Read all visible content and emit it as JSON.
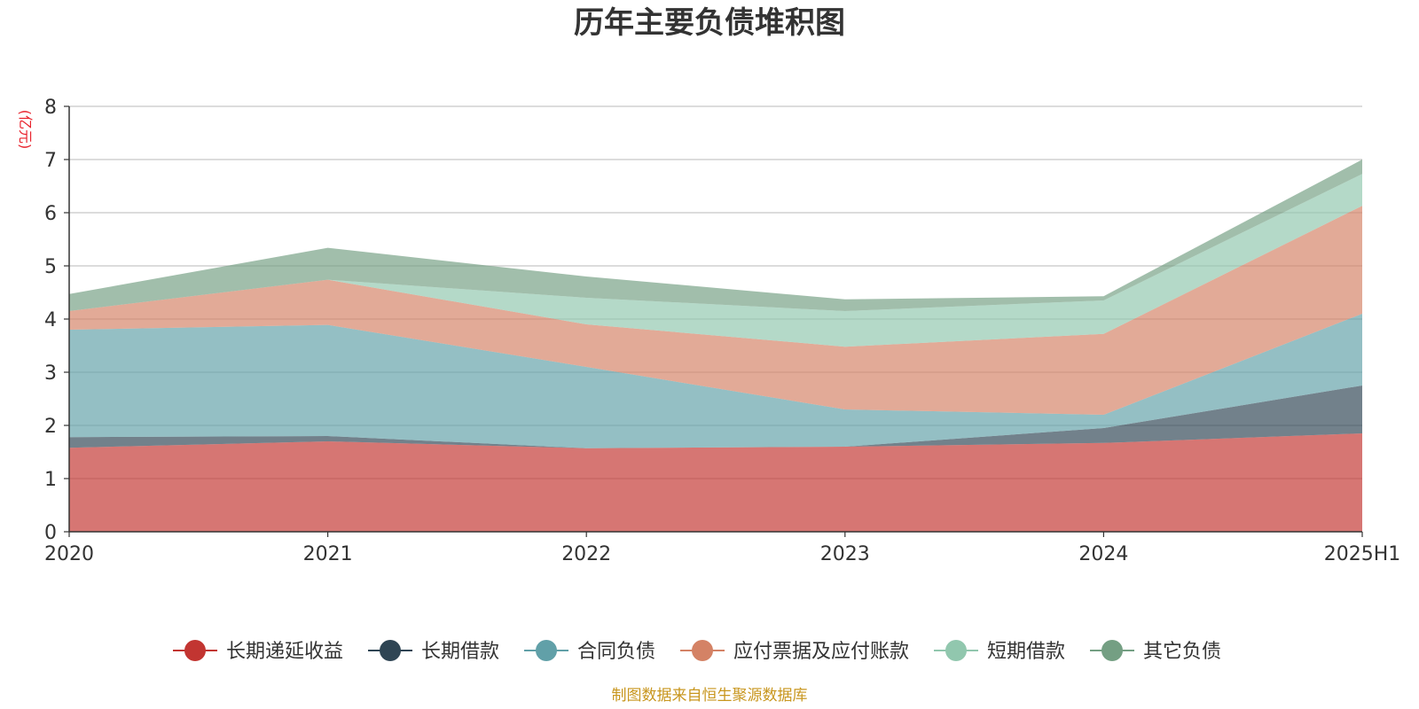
{
  "chart_data": {
    "type": "area",
    "stacked": true,
    "title": "历年主要负债堆积图",
    "unit_label": "(亿元)",
    "x": [
      "2020",
      "2021",
      "2022",
      "2023",
      "2024",
      "2025H1"
    ],
    "ylim": [
      0,
      8
    ],
    "yticks": [
      0,
      1,
      2,
      3,
      4,
      5,
      6,
      7,
      8
    ],
    "grid": true,
    "legend_position": "bottom",
    "series": [
      {
        "name": "长期递延收益",
        "color": "#c23531",
        "values": [
          1.58,
          1.7,
          1.57,
          1.6,
          1.67,
          1.85
        ]
      },
      {
        "name": "长期借款",
        "color": "#2f4554",
        "values": [
          0.2,
          0.1,
          0.0,
          0.0,
          0.28,
          0.9
        ]
      },
      {
        "name": "合同负债",
        "color": "#61a0a8",
        "values": [
          2.02,
          2.09,
          1.53,
          0.7,
          0.25,
          1.35
        ]
      },
      {
        "name": "应付票据及应付账款",
        "color": "#d48265",
        "values": [
          0.35,
          0.85,
          0.8,
          1.18,
          1.52,
          2.03
        ]
      },
      {
        "name": "短期借款",
        "color": "#91c7ae",
        "values": [
          0.0,
          0.0,
          0.5,
          0.67,
          0.63,
          0.6
        ]
      },
      {
        "name": "其它负债",
        "color": "#749f83",
        "values": [
          0.32,
          0.6,
          0.4,
          0.22,
          0.08,
          0.27
        ]
      }
    ],
    "source_note": "制图数据来自恒生聚源数据库"
  }
}
